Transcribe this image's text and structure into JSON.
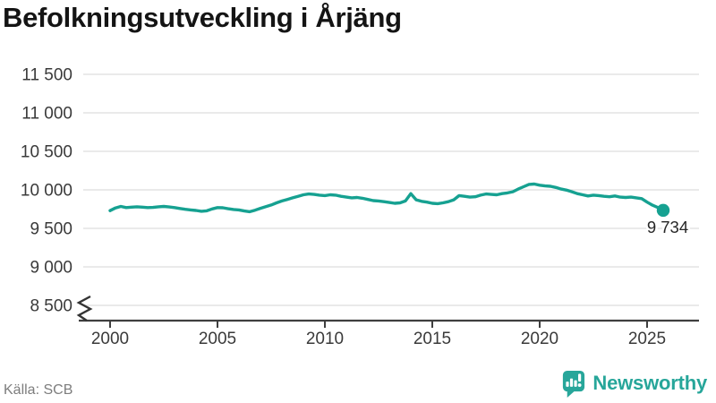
{
  "title": "Befolkningsutveckling i Årjäng",
  "source": "Källa: SCB",
  "logo": {
    "text": "Newsworthy",
    "icon": "newsworthy-speech-bubble-bar-chart-icon"
  },
  "colors": {
    "line": "#16a191",
    "dot": "#16a191",
    "grid": "#e4e4e4",
    "axis": "#3f3f3f",
    "tick_label": "#3a3a3a",
    "title": "#141414",
    "source": "#7d7d7d",
    "logo": "#27a69a",
    "annotation": "#262626",
    "background": "#ffffff"
  },
  "chart_data": {
    "type": "line",
    "title": "Befolkningsutveckling i Årjäng",
    "series_name": "Befolkning",
    "x": [
      2000.0,
      2000.25,
      2000.5,
      2000.75,
      2001.0,
      2001.25,
      2001.5,
      2001.75,
      2002.0,
      2002.25,
      2002.5,
      2002.75,
      2003.0,
      2003.25,
      2003.5,
      2003.75,
      2004.0,
      2004.25,
      2004.5,
      2004.75,
      2005.0,
      2005.25,
      2005.5,
      2005.75,
      2006.0,
      2006.25,
      2006.5,
      2006.75,
      2007.0,
      2007.25,
      2007.5,
      2007.75,
      2008.0,
      2008.25,
      2008.5,
      2008.75,
      2009.0,
      2009.25,
      2009.5,
      2009.75,
      2010.0,
      2010.25,
      2010.5,
      2010.75,
      2011.0,
      2011.25,
      2011.5,
      2011.75,
      2012.0,
      2012.25,
      2012.5,
      2012.75,
      2013.0,
      2013.25,
      2013.5,
      2013.75,
      2014.0,
      2014.25,
      2014.5,
      2014.75,
      2015.0,
      2015.25,
      2015.5,
      2015.75,
      2016.0,
      2016.25,
      2016.5,
      2016.75,
      2017.0,
      2017.25,
      2017.5,
      2017.75,
      2018.0,
      2018.25,
      2018.5,
      2018.75,
      2019.0,
      2019.25,
      2019.5,
      2019.75,
      2020.0,
      2020.25,
      2020.5,
      2020.75,
      2021.0,
      2021.25,
      2021.5,
      2021.75,
      2022.0,
      2022.25,
      2022.5,
      2022.75,
      2023.0,
      2023.25,
      2023.5,
      2023.75,
      2024.0,
      2024.25,
      2024.5,
      2024.75,
      2025.0,
      2025.25,
      2025.5,
      2025.75
    ],
    "y": [
      9730,
      9765,
      9785,
      9770,
      9775,
      9780,
      9775,
      9770,
      9772,
      9780,
      9785,
      9778,
      9770,
      9758,
      9748,
      9740,
      9732,
      9722,
      9728,
      9752,
      9770,
      9768,
      9755,
      9745,
      9740,
      9726,
      9716,
      9736,
      9761,
      9781,
      9803,
      9831,
      9856,
      9876,
      9896,
      9916,
      9936,
      9946,
      9941,
      9931,
      9926,
      9936,
      9931,
      9916,
      9906,
      9896,
      9901,
      9891,
      9876,
      9861,
      9856,
      9846,
      9836,
      9826,
      9831,
      9856,
      9951,
      9871,
      9851,
      9841,
      9826,
      9821,
      9831,
      9846,
      9871,
      9926,
      9916,
      9906,
      9911,
      9931,
      9946,
      9941,
      9936,
      9951,
      9961,
      9976,
      10011,
      10041,
      10071,
      10076,
      10061,
      10051,
      10046,
      10031,
      10011,
      9996,
      9976,
      9951,
      9936,
      9921,
      9931,
      9926,
      9916,
      9911,
      9921,
      9906,
      9901,
      9906,
      9896,
      9886,
      9841,
      9801,
      9771,
      9734
    ],
    "last_value": 9734,
    "last_point_label": "9 734",
    "x_ticks": [
      2000,
      2005,
      2010,
      2015,
      2020,
      2025
    ],
    "x_tick_labels": [
      "2000",
      "2005",
      "2010",
      "2015",
      "2020",
      "2025"
    ],
    "y_ticks": [
      8500,
      9000,
      9500,
      10000,
      10500,
      11000,
      11500
    ],
    "y_tick_labels": [
      "8 500",
      "9 000",
      "9 500",
      "10 000",
      "10 500",
      "11 000",
      "11 500"
    ],
    "ylim": [
      8500,
      11500
    ],
    "xlim": [
      1998.75,
      2027.4
    ],
    "axis_break": true,
    "grid": "horizontal-only",
    "legend": "none"
  }
}
